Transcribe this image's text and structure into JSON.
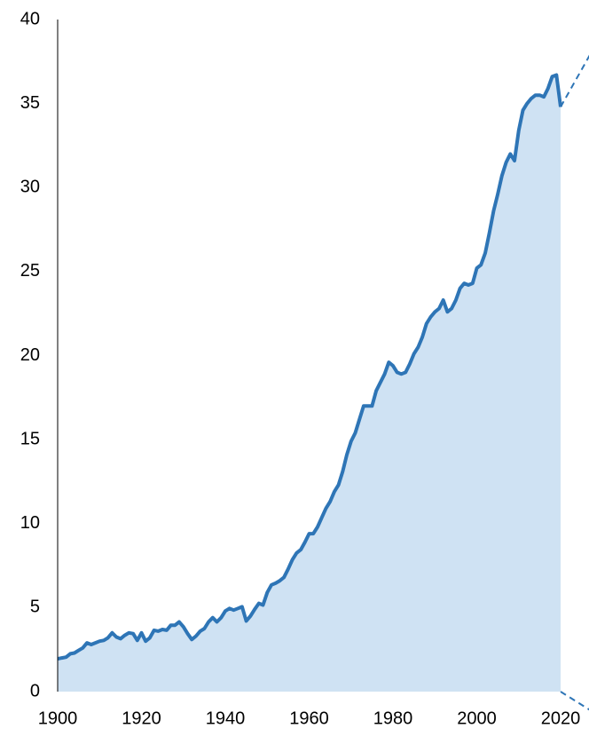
{
  "chart_data": {
    "type": "area",
    "x": [
      1900,
      1901,
      1902,
      1903,
      1904,
      1905,
      1906,
      1907,
      1908,
      1909,
      1910,
      1911,
      1912,
      1913,
      1914,
      1915,
      1916,
      1917,
      1918,
      1919,
      1920,
      1921,
      1922,
      1923,
      1924,
      1925,
      1926,
      1927,
      1928,
      1929,
      1930,
      1931,
      1932,
      1933,
      1934,
      1935,
      1936,
      1937,
      1938,
      1939,
      1940,
      1941,
      1942,
      1943,
      1944,
      1945,
      1946,
      1947,
      1948,
      1949,
      1950,
      1951,
      1952,
      1953,
      1954,
      1955,
      1956,
      1957,
      1958,
      1959,
      1960,
      1961,
      1962,
      1963,
      1964,
      1965,
      1966,
      1967,
      1968,
      1969,
      1970,
      1971,
      1972,
      1973,
      1974,
      1975,
      1976,
      1977,
      1978,
      1979,
      1980,
      1981,
      1982,
      1983,
      1984,
      1985,
      1986,
      1987,
      1988,
      1989,
      1990,
      1991,
      1992,
      1993,
      1994,
      1995,
      1996,
      1997,
      1998,
      1999,
      2000,
      2001,
      2002,
      2003,
      2004,
      2005,
      2006,
      2007,
      2008,
      2009,
      2010,
      2011,
      2012,
      2013,
      2014,
      2015,
      2016,
      2017,
      2018,
      2019,
      2020
    ],
    "series": [
      {
        "color": "#2e75b6",
        "fill": "#cfe2f3",
        "style": "solid",
        "values": [
          1.95,
          2.0,
          2.05,
          2.25,
          2.3,
          2.45,
          2.6,
          2.9,
          2.8,
          2.9,
          3.0,
          3.05,
          3.2,
          3.5,
          3.25,
          3.15,
          3.35,
          3.5,
          3.45,
          3.05,
          3.5,
          3.0,
          3.2,
          3.65,
          3.6,
          3.7,
          3.65,
          3.95,
          3.95,
          4.15,
          3.85,
          3.45,
          3.1,
          3.3,
          3.6,
          3.75,
          4.15,
          4.4,
          4.15,
          4.4,
          4.8,
          4.95,
          4.85,
          4.95,
          5.05,
          4.2,
          4.5,
          4.9,
          5.25,
          5.15,
          5.9,
          6.35,
          6.45,
          6.6,
          6.8,
          7.3,
          7.85,
          8.25,
          8.45,
          8.9,
          9.4,
          9.4,
          9.8,
          10.35,
          10.9,
          11.3,
          11.9,
          12.3,
          13.1,
          14.1,
          14.9,
          15.4,
          16.2,
          17.0,
          17.0,
          17.0,
          17.9,
          18.4,
          18.9,
          19.6,
          19.4,
          19.0,
          18.9,
          19.0,
          19.5,
          20.1,
          20.5,
          21.1,
          21.9,
          22.3,
          22.6,
          22.8,
          23.3,
          22.6,
          22.8,
          23.3,
          24.0,
          24.3,
          24.2,
          24.3,
          25.2,
          25.4,
          26.1,
          27.3,
          28.6,
          29.6,
          30.7,
          31.5,
          32.0,
          31.6,
          33.4,
          34.6,
          35.0,
          35.3,
          35.5,
          35.5,
          35.4,
          35.9,
          36.6,
          36.7,
          34.8
        ]
      },
      {
        "color": "#2e75b6",
        "style": "dashed",
        "x": [
          2020,
          2027
        ],
        "values": [
          34.8,
          37.9
        ]
      },
      {
        "color": "#2e75b6",
        "style": "dashed",
        "x": [
          2020,
          2027
        ],
        "values": [
          0,
          -1.1
        ]
      }
    ],
    "xlim": [
      1900,
      2020
    ],
    "xticks": [
      1900,
      1920,
      1940,
      1960,
      1980,
      2000,
      2020
    ],
    "ylim": [
      0,
      40
    ],
    "yticks": [
      0,
      5,
      10,
      15,
      20,
      25,
      30,
      35,
      40
    ]
  }
}
